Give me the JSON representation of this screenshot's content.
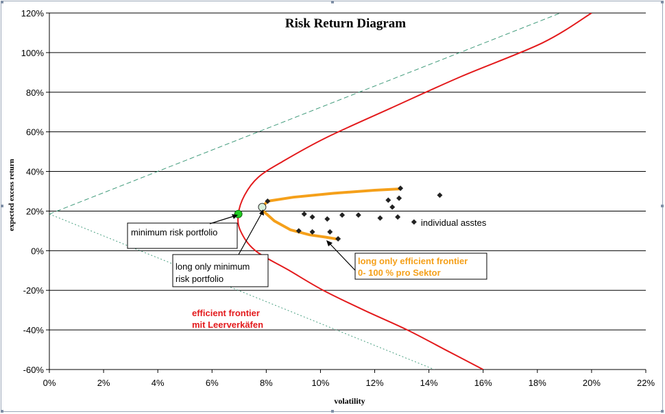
{
  "chart_data": {
    "type": "line",
    "title": "Risk Return Diagram",
    "xlabel": "volatility",
    "ylabel": "expected excess return",
    "xlim": [
      0,
      22
    ],
    "ylim": [
      -60,
      120
    ],
    "x_ticks": [
      0,
      2,
      4,
      6,
      8,
      10,
      12,
      14,
      16,
      18,
      20,
      22
    ],
    "x_tick_labels": [
      "0%",
      "2%",
      "4%",
      "6%",
      "8%",
      "10%",
      "12%",
      "14%",
      "16%",
      "18%",
      "20%",
      "22%"
    ],
    "y_ticks": [
      -60,
      -40,
      -20,
      0,
      20,
      40,
      60,
      80,
      100,
      120
    ],
    "y_tick_labels": [
      "-60%",
      "-40%",
      "-20%",
      "0%",
      "20%",
      "40%",
      "60%",
      "80%",
      "100%",
      "120%"
    ],
    "grid": "horizontal",
    "colors": {
      "efficient_frontier": "#e31a1c",
      "long_only_frontier": "#f5a01a",
      "capital_lines": "#3f9a7a",
      "assets": "#222222",
      "min_risk_point": "#22cc22",
      "long_only_min_point": "#d8f0dc"
    },
    "series": [
      {
        "id": "efficient_frontier",
        "style": "red-line",
        "points": [
          [
            16.0,
            -60
          ],
          [
            14.6,
            -50
          ],
          [
            13.2,
            -40
          ],
          [
            11.6,
            -30
          ],
          [
            10.1,
            -20
          ],
          [
            8.85,
            -10
          ],
          [
            7.6,
            0
          ],
          [
            7.05,
            10
          ],
          [
            6.97,
            18.5
          ],
          [
            7.2,
            28
          ],
          [
            7.7,
            37
          ],
          [
            8.6,
            45
          ],
          [
            10.2,
            57
          ],
          [
            12.6,
            72
          ],
          [
            15.2,
            88
          ],
          [
            18.2,
            105
          ],
          [
            20.0,
            120
          ]
        ]
      },
      {
        "id": "long_only_frontier",
        "style": "orange-line",
        "points": [
          [
            7.85,
            22
          ],
          [
            8.05,
            25
          ],
          [
            9.0,
            27
          ],
          [
            10.5,
            29
          ],
          [
            12.0,
            30.5
          ],
          [
            12.95,
            31.2
          ],
          [
            7.85,
            20.5
          ],
          [
            8.3,
            15
          ],
          [
            8.9,
            10.5
          ],
          [
            9.6,
            8
          ],
          [
            10.2,
            6.8
          ],
          [
            10.65,
            5.8
          ]
        ]
      },
      {
        "id": "capital_market_line_upper",
        "style": "dashed",
        "points": [
          [
            0,
            18.5
          ],
          [
            18.85,
            120
          ]
        ]
      },
      {
        "id": "capital_market_line_lower",
        "style": "dotted",
        "points": [
          [
            0,
            18.5
          ],
          [
            14.2,
            -60
          ]
        ]
      }
    ],
    "min_risk_portfolio": [
      6.97,
      18.5
    ],
    "long_only_min_risk_portfolio": [
      7.85,
      22
    ],
    "individual_assets": [
      [
        8.05,
        25
      ],
      [
        9.2,
        10
      ],
      [
        9.4,
        18.5
      ],
      [
        9.7,
        17
      ],
      [
        9.7,
        9.5
      ],
      [
        10.25,
        16
      ],
      [
        10.35,
        9.5
      ],
      [
        10.65,
        6
      ],
      [
        10.8,
        18
      ],
      [
        11.4,
        18
      ],
      [
        12.2,
        16.5
      ],
      [
        12.5,
        25.5
      ],
      [
        12.65,
        22
      ],
      [
        12.85,
        17
      ],
      [
        12.9,
        26.5
      ],
      [
        12.95,
        31.5
      ],
      [
        13.45,
        14.5
      ],
      [
        14.4,
        28
      ]
    ],
    "annotations": {
      "min_risk": "minimum risk portfolio",
      "long_only_min_line1": "long only minimum",
      "long_only_min_line2": "risk portfolio",
      "long_only_frontier_line1": "long only efficient frontier",
      "long_only_frontier_line2": "0- 100 % pro Sektor",
      "efficient_frontier_line1": "efficient frontier",
      "efficient_frontier_line2": "mit Leerverkäfen",
      "individual_assets": "individual asstes"
    }
  }
}
